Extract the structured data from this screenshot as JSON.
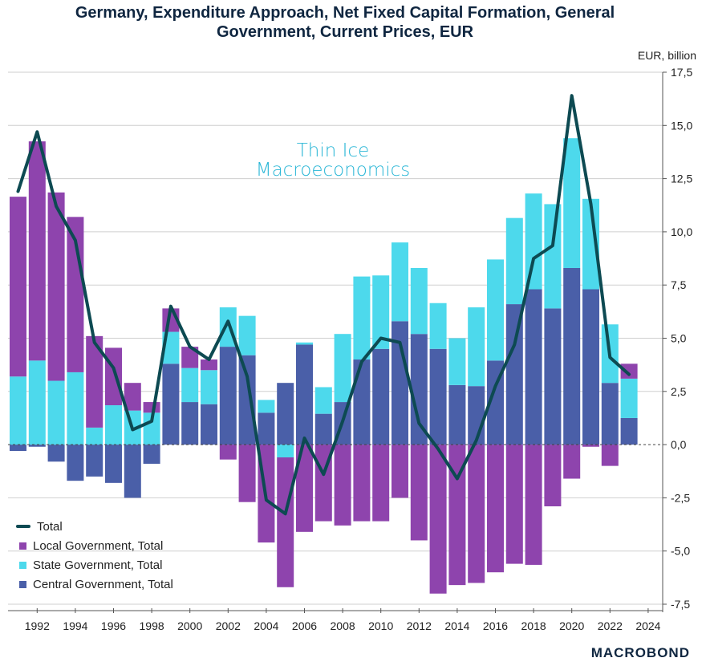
{
  "title_line1": "Germany, Expenditure Approach, Net Fixed Capital Formation, General",
  "title_line2": "Government, Current Prices, EUR",
  "watermark": {
    "line1": "Thin Ice",
    "line2": "Macroeconomics"
  },
  "brand": "MACROBOND",
  "colors": {
    "local": "#8e44ad",
    "state": "#4dd9ec",
    "central": "#4a5fa8",
    "total": "#0d4a52"
  },
  "chart_data": {
    "type": "bar",
    "stacked": true,
    "unit_label": "EUR, billion",
    "ylim": [
      -7.5,
      17.5
    ],
    "y_ticks": [
      "17,5",
      "15,0",
      "12,5",
      "10,0",
      "7,5",
      "5,0",
      "2,5",
      "0,0",
      "-2,5",
      "-5,0",
      "-7,5"
    ],
    "x_tick_labels": [
      "1992",
      "1994",
      "1996",
      "1998",
      "2000",
      "2002",
      "2004",
      "2006",
      "2008",
      "2010",
      "2012",
      "2014",
      "2016",
      "2018",
      "2020",
      "2022",
      "2024"
    ],
    "categories": [
      "1991",
      "1992",
      "1993",
      "1994",
      "1995",
      "1996",
      "1997",
      "1998",
      "1999",
      "2000",
      "2001",
      "2002",
      "2003",
      "2004",
      "2005",
      "2006",
      "2007",
      "2008",
      "2009",
      "2010",
      "2011",
      "2012",
      "2013",
      "2014",
      "2015",
      "2016",
      "2017",
      "2018",
      "2019",
      "2020",
      "2021",
      "2022",
      "2023"
    ],
    "series": [
      {
        "name": "Central Government, Total",
        "values": [
          -0.3,
          -0.1,
          -0.8,
          -1.7,
          -1.5,
          -1.8,
          -2.5,
          -0.9,
          3.8,
          2.0,
          1.9,
          4.6,
          4.2,
          1.5,
          2.9,
          4.7,
          1.45,
          2.0,
          4.0,
          4.5,
          5.8,
          5.2,
          4.5,
          2.8,
          2.75,
          3.95,
          6.6,
          7.3,
          6.4,
          8.3,
          7.3,
          2.9,
          1.25
        ]
      },
      {
        "name": "State Government, Total",
        "values": [
          3.2,
          3.95,
          3.0,
          3.4,
          0.8,
          1.85,
          1.6,
          1.5,
          1.5,
          1.6,
          1.6,
          1.85,
          1.85,
          0.6,
          -0.6,
          0.1,
          1.25,
          3.2,
          3.9,
          3.45,
          3.7,
          3.1,
          2.15,
          2.2,
          3.7,
          4.75,
          4.05,
          4.5,
          4.9,
          6.1,
          4.25,
          2.75,
          1.85
        ]
      },
      {
        "name": "Local Government, Total",
        "values": [
          8.45,
          10.3,
          8.85,
          7.3,
          4.3,
          2.7,
          1.3,
          0.5,
          1.1,
          1.0,
          0.5,
          -0.7,
          -2.7,
          -4.6,
          -6.1,
          -4.1,
          -3.6,
          -3.8,
          -3.6,
          -3.6,
          -2.5,
          -4.5,
          -7.0,
          -6.6,
          -6.5,
          -6.0,
          -5.6,
          -5.65,
          -2.9,
          -1.6,
          -0.1,
          -1.0,
          0.7
        ]
      },
      {
        "name": "Total",
        "values": [
          11.9,
          14.7,
          11.2,
          9.6,
          4.8,
          3.6,
          0.7,
          1.1,
          6.5,
          4.6,
          4.0,
          5.8,
          3.2,
          -2.6,
          -3.25,
          0.3,
          -1.4,
          1.1,
          3.9,
          5.0,
          4.8,
          1.0,
          -0.2,
          -1.6,
          0.2,
          2.75,
          4.7,
          8.75,
          9.35,
          16.4,
          11.3,
          4.1,
          3.3
        ]
      }
    ],
    "legend": [
      "Total",
      "Local Government, Total",
      "State Government, Total",
      "Central Government, Total"
    ],
    "legend_placement": "bottom-left",
    "grid": true
  }
}
